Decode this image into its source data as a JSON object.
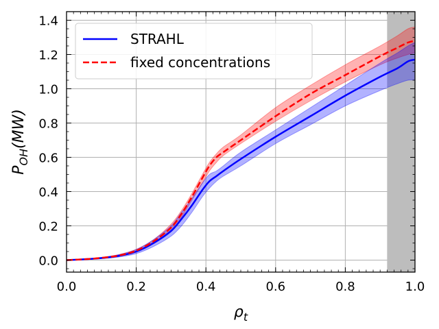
{
  "chart_data": {
    "type": "line",
    "xlabel": "ρ_t",
    "xlabel_main": "ρ",
    "xlabel_sub": "t",
    "ylabel": "P_OH(MW)",
    "ylabel_main": "P",
    "ylabel_sub": "OH",
    "ylabel_tail": "(MW)",
    "xlim": [
      0.0,
      1.0
    ],
    "ylim": [
      -0.07,
      1.45
    ],
    "grid": true,
    "legend_position": "top-left",
    "x_ticks": [
      0.0,
      0.2,
      0.4,
      0.6,
      0.8,
      1.0
    ],
    "x_tick_labels": [
      "0.0",
      "0.2",
      "0.4",
      "0.6",
      "0.8",
      "1.0"
    ],
    "y_ticks": [
      0.0,
      0.2,
      0.4,
      0.6,
      0.8,
      1.0,
      1.2,
      1.4
    ],
    "y_tick_labels": [
      "0.0",
      "0.2",
      "0.4",
      "0.6",
      "0.8",
      "1.0",
      "1.2",
      "1.4"
    ],
    "shaded_region": {
      "x_start": 0.92,
      "x_end": 1.0,
      "color": "#bdbdbd"
    },
    "x": [
      0.0,
      0.05,
      0.1,
      0.15,
      0.2,
      0.25,
      0.3,
      0.33,
      0.36,
      0.39,
      0.41,
      0.43,
      0.45,
      0.5,
      0.6,
      0.7,
      0.8,
      0.9,
      0.95,
      0.98,
      1.0
    ],
    "series": [
      {
        "name": "STRAHL",
        "color": "#0000ff",
        "style": "solid",
        "values": [
          0.0,
          0.005,
          0.012,
          0.025,
          0.05,
          0.1,
          0.17,
          0.24,
          0.32,
          0.41,
          0.46,
          0.49,
          0.52,
          0.59,
          0.72,
          0.84,
          0.96,
          1.07,
          1.12,
          1.16,
          1.17
        ],
        "lower": [
          0.0,
          0.003,
          0.008,
          0.018,
          0.038,
          0.08,
          0.14,
          0.2,
          0.28,
          0.37,
          0.42,
          0.46,
          0.49,
          0.55,
          0.68,
          0.79,
          0.9,
          0.99,
          1.03,
          1.05,
          1.05
        ],
        "upper": [
          0.0,
          0.007,
          0.016,
          0.032,
          0.062,
          0.12,
          0.2,
          0.28,
          0.36,
          0.45,
          0.5,
          0.52,
          0.55,
          0.63,
          0.76,
          0.89,
          1.02,
          1.15,
          1.21,
          1.25,
          1.27
        ]
      },
      {
        "name": "fixed concentrations",
        "color": "#ff0000",
        "style": "dashed",
        "values": [
          0.0,
          0.005,
          0.013,
          0.027,
          0.055,
          0.11,
          0.19,
          0.27,
          0.37,
          0.48,
          0.55,
          0.6,
          0.63,
          0.7,
          0.84,
          0.97,
          1.08,
          1.19,
          1.24,
          1.27,
          1.28
        ],
        "lower": [
          0.0,
          0.004,
          0.01,
          0.022,
          0.047,
          0.1,
          0.17,
          0.25,
          0.35,
          0.45,
          0.52,
          0.57,
          0.61,
          0.68,
          0.81,
          0.93,
          1.04,
          1.14,
          1.18,
          1.2,
          1.21
        ],
        "upper": [
          0.0,
          0.006,
          0.016,
          0.032,
          0.063,
          0.12,
          0.21,
          0.29,
          0.39,
          0.5,
          0.57,
          0.62,
          0.66,
          0.73,
          0.89,
          1.02,
          1.14,
          1.25,
          1.31,
          1.35,
          1.36
        ]
      }
    ]
  }
}
